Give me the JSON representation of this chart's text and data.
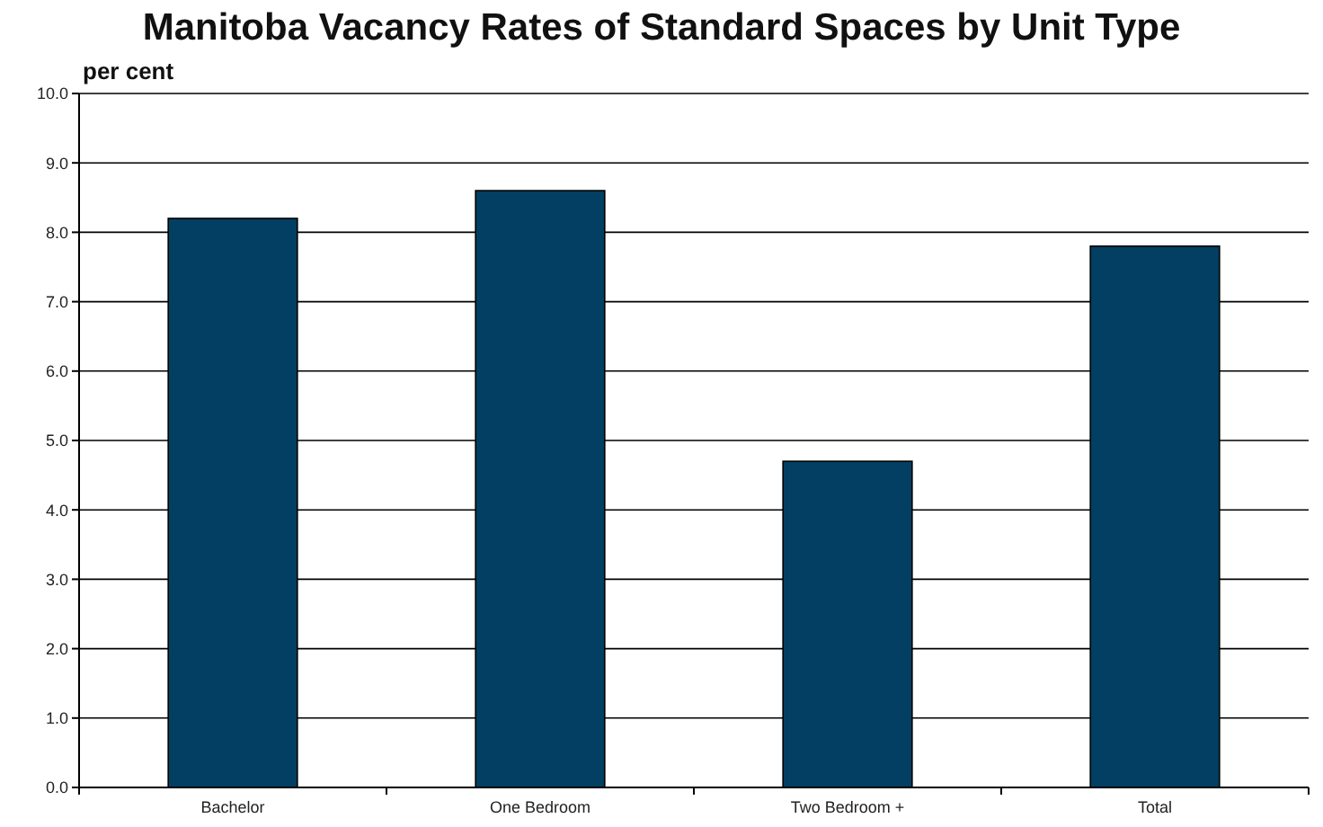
{
  "chart_data": {
    "type": "bar",
    "title": "Manitoba Vacancy Rates of Standard Spaces by Unit Type",
    "ylabel": "per cent",
    "categories": [
      "Bachelor",
      "One Bedroom",
      "Two Bedroom +",
      "Total"
    ],
    "values": [
      8.2,
      8.6,
      4.7,
      7.8
    ],
    "color": "#023f62",
    "ylim": [
      0,
      10
    ],
    "yticks": [
      {
        "value": 0,
        "label": "0.0"
      },
      {
        "value": 1,
        "label": "1.0"
      },
      {
        "value": 2,
        "label": "2.0"
      },
      {
        "value": 3,
        "label": "3.0"
      },
      {
        "value": 4,
        "label": "4.0"
      },
      {
        "value": 5,
        "label": "5.0"
      },
      {
        "value": 6,
        "label": "6.0"
      },
      {
        "value": 7,
        "label": "7.0"
      },
      {
        "value": 8,
        "label": "8.0"
      },
      {
        "value": 9,
        "label": "9.0"
      },
      {
        "value": 10,
        "label": "10.0"
      }
    ],
    "grid": "y"
  }
}
